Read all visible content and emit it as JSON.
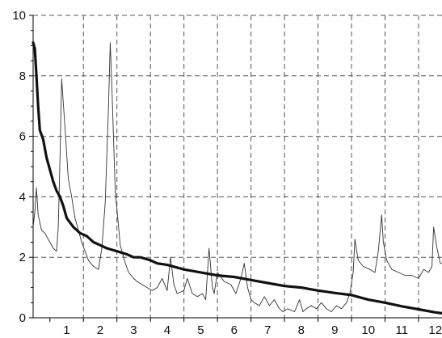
{
  "chart_data": {
    "type": "line",
    "title": "",
    "xlabel": "",
    "ylabel": "",
    "xlim": [
      0,
      12.2
    ],
    "ylim": [
      0,
      10
    ],
    "x_ticks": [
      "1",
      "2",
      "3",
      "4",
      "5",
      "6",
      "7",
      "8",
      "9",
      "10",
      "11",
      "12"
    ],
    "y_ticks": [
      "0",
      "2",
      "4",
      "6",
      "8",
      "10"
    ],
    "grid": {
      "horizontal": true,
      "vertical": true,
      "style": "dashed"
    },
    "series": [
      {
        "style": "thin",
        "color": "#333333",
        "x": [
          0.0,
          0.05,
          0.1,
          0.15,
          0.25,
          0.35,
          0.5,
          0.6,
          0.7,
          0.75,
          0.8,
          0.85,
          0.95,
          1.05,
          1.15,
          1.25,
          1.35,
          1.45,
          1.55,
          1.65,
          1.8,
          1.95,
          2.05,
          2.15,
          2.25,
          2.3,
          2.35,
          2.45,
          2.6,
          2.75,
          2.85,
          3.0,
          3.1,
          3.25,
          3.4,
          3.55,
          3.7,
          3.85,
          4.0,
          4.1,
          4.2,
          4.3,
          4.5,
          4.6,
          4.75,
          4.9,
          5.05,
          5.15,
          5.25,
          5.35,
          5.4,
          5.5,
          5.7,
          5.9,
          6.05,
          6.2,
          6.3,
          6.4,
          6.5,
          6.6,
          6.75,
          6.9,
          7.05,
          7.2,
          7.35,
          7.45,
          7.6,
          7.8,
          7.95,
          8.05,
          8.15,
          8.3,
          8.45,
          8.6,
          8.75,
          8.9,
          9.05,
          9.2,
          9.35,
          9.45,
          9.55,
          9.6,
          9.7,
          9.85,
          10.05,
          10.2,
          10.3,
          10.4,
          10.45,
          10.55,
          10.7,
          10.9,
          11.1,
          11.3,
          11.5,
          11.65,
          11.8,
          11.9,
          11.95,
          12.05,
          12.15,
          12.2
        ],
        "y": [
          3.0,
          3.5,
          4.3,
          3.4,
          2.9,
          2.8,
          2.5,
          2.3,
          2.2,
          3.0,
          5.2,
          7.9,
          6.3,
          4.6,
          4.0,
          3.3,
          2.9,
          2.5,
          2.2,
          1.9,
          1.7,
          1.6,
          2.3,
          3.8,
          7.0,
          9.1,
          7.6,
          4.2,
          2.4,
          1.8,
          1.5,
          1.3,
          1.2,
          1.1,
          1.0,
          0.9,
          1.0,
          1.3,
          0.9,
          2.0,
          1.1,
          0.8,
          0.9,
          1.3,
          0.8,
          0.7,
          0.8,
          0.6,
          2.3,
          1.0,
          0.8,
          1.5,
          1.2,
          1.1,
          0.8,
          1.3,
          1.8,
          1.0,
          0.6,
          0.5,
          0.4,
          0.7,
          0.4,
          0.6,
          0.3,
          0.2,
          0.3,
          0.2,
          0.6,
          0.2,
          0.3,
          0.4,
          0.3,
          0.5,
          0.3,
          0.2,
          0.4,
          0.3,
          0.5,
          0.8,
          1.5,
          2.6,
          1.9,
          1.7,
          1.6,
          1.5,
          2.2,
          3.4,
          2.5,
          1.9,
          1.6,
          1.5,
          1.4,
          1.4,
          1.3,
          1.6,
          1.5,
          1.7,
          3.0,
          2.3,
          1.8,
          1.8
        ]
      },
      {
        "style": "thick",
        "color": "#111111",
        "x": [
          0.0,
          0.05,
          0.1,
          0.15,
          0.2,
          0.3,
          0.4,
          0.5,
          0.6,
          0.7,
          0.8,
          0.9,
          1.0,
          1.2,
          1.4,
          1.6,
          1.8,
          2.0,
          2.2,
          2.5,
          2.8,
          3.0,
          3.2,
          3.5,
          3.7,
          4.0,
          4.5,
          5.0,
          5.5,
          6.0,
          6.5,
          7.0,
          7.5,
          8.0,
          8.5,
          9.0,
          9.5,
          10.0,
          10.5,
          11.0,
          11.5,
          12.0,
          12.2
        ],
        "y": [
          9.1,
          8.9,
          8.0,
          7.0,
          6.2,
          5.9,
          5.3,
          4.9,
          4.5,
          4.2,
          4.0,
          3.7,
          3.3,
          3.0,
          2.8,
          2.7,
          2.5,
          2.4,
          2.3,
          2.2,
          2.1,
          2.0,
          2.0,
          1.9,
          1.8,
          1.75,
          1.6,
          1.5,
          1.4,
          1.35,
          1.25,
          1.15,
          1.05,
          1.0,
          0.9,
          0.82,
          0.75,
          0.6,
          0.5,
          0.38,
          0.28,
          0.18,
          0.15
        ]
      }
    ]
  }
}
